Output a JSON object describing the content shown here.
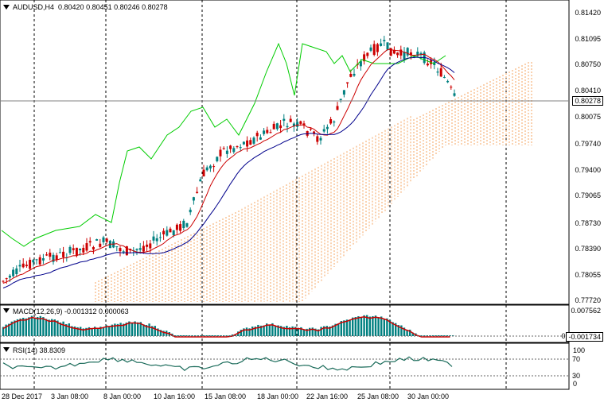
{
  "instrument": "AUDUSD,H4",
  "ohlc": "0.80420 0.80451 0.80246 0.80278",
  "current_price": "0.80278",
  "price_axis": [
    "0.81420",
    "0.81095",
    "0.80750",
    "0.80410",
    "0.80075",
    "0.79740",
    "0.79400",
    "0.79065",
    "0.78730",
    "0.78390",
    "0.78055",
    "0.77720"
  ],
  "macd": {
    "label": "MACD(12,26,9) -0.001312 0.000063",
    "axis_top": "0.007562",
    "axis_zero": "0.00",
    "axis_bottom": "-0.001734"
  },
  "rsi": {
    "label": "RSI(14) 38.8309",
    "levels": [
      "100",
      "70",
      "30",
      "0"
    ]
  },
  "dates": [
    "28 Dec 2017",
    "3 Jan 08:00",
    "8 Jan 00:00",
    "10 Jan 16:00",
    "15 Jan 08:00",
    "18 Jan 00:00",
    "22 Jan 16:00",
    "25 Jan 08:00",
    "30 Jan 00:00"
  ],
  "colors": {
    "bull": "#008080",
    "bear": "#cc0000",
    "tenkan": "#cc0000",
    "kijun": "#00008b",
    "chikou": "#00cc00",
    "cloud": "#f4a460",
    "macd_line": "#cc0000",
    "rsi_line": "#1a6b5a",
    "grid": "#000000"
  }
}
